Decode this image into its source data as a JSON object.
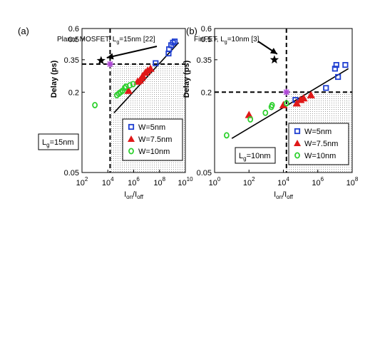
{
  "chart_data": [
    {
      "type": "scatter",
      "panel_label": "(a)",
      "xlabel": {
        "main": "I",
        "sub1": "on",
        "sep": "/I",
        "sub2": "off"
      },
      "ylabel": "Delay (ps)",
      "log_x": true,
      "log_y": true,
      "xlim": [
        100,
        10000000000
      ],
      "ylim": [
        0.05,
        0.6
      ],
      "x_ticks": [
        {
          "value": 100,
          "base": "10",
          "exp": "2"
        },
        {
          "value": 10000,
          "base": "10",
          "exp": "4"
        },
        {
          "value": 1000000,
          "base": "10",
          "exp": "6"
        },
        {
          "value": 100000000,
          "base": "10",
          "exp": "8"
        },
        {
          "value": 10000000000,
          "base": "10",
          "exp": "10"
        }
      ],
      "y_ticks": [
        {
          "value": 0.05,
          "label": "0.05"
        },
        {
          "value": 0.2,
          "label": "0.2"
        },
        {
          "value": 0.35,
          "label": "0.35"
        },
        {
          "value": 0.5,
          "label": "0.5"
        },
        {
          "value": 0.6,
          "label": "0.6"
        }
      ],
      "gate_box": {
        "prefix": "L",
        "sub": "g",
        "suffix": "=15nm"
      },
      "reference": {
        "prefix": "Planar MOSFET, L",
        "sub": "g",
        "suffix": "=15nm [22]",
        "x": 3000,
        "y": 0.345
      },
      "crossing_point": {
        "x": 15000,
        "y": 0.325
      },
      "dashed_x": 15000,
      "dashed_y": 0.325,
      "fit_line": {
        "x": [
          30000,
          3000000000
        ],
        "y": [
          0.14,
          0.47
        ]
      },
      "legend_position": "lower-right",
      "series": [
        {
          "name": "W=5nm",
          "marker": "square",
          "color": "#1f3fd1",
          "x": [
            50000000,
            500000000,
            550000000,
            800000000,
            1100000000,
            1500000000
          ],
          "y": [
            0.33,
            0.39,
            0.42,
            0.45,
            0.47,
            0.48
          ]
        },
        {
          "name": "W=7.5nm",
          "marker": "triangle",
          "color": "#e01818",
          "x": [
            400000,
            2000000,
            3000000,
            4000000,
            5000000,
            8000000,
            12000000,
            20000000
          ],
          "y": [
            0.205,
            0.24,
            0.245,
            0.255,
            0.265,
            0.28,
            0.29,
            0.3
          ]
        },
        {
          "name": "W=10nm",
          "marker": "circle",
          "color": "#2fd12f",
          "x": [
            1000,
            50000,
            70000,
            100000,
            140000,
            200000,
            250000,
            500000,
            900000
          ],
          "y": [
            0.16,
            0.19,
            0.195,
            0.2,
            0.205,
            0.215,
            0.22,
            0.225,
            0.23
          ]
        }
      ]
    },
    {
      "type": "scatter",
      "panel_label": "(b)",
      "xlabel": {
        "main": "I",
        "sub1": "on",
        "sep": "/I",
        "sub2": "off"
      },
      "ylabel": "Delay (ps)",
      "log_x": true,
      "log_y": true,
      "xlim": [
        1,
        100000000
      ],
      "ylim": [
        0.05,
        0.6
      ],
      "x_ticks": [
        {
          "value": 1,
          "base": "10",
          "exp": "0"
        },
        {
          "value": 100,
          "base": "10",
          "exp": "2"
        },
        {
          "value": 10000,
          "base": "10",
          "exp": "4"
        },
        {
          "value": 1000000,
          "base": "10",
          "exp": "6"
        },
        {
          "value": 100000000,
          "base": "10",
          "exp": "8"
        }
      ],
      "y_ticks": [
        {
          "value": 0.05,
          "label": "0.05"
        },
        {
          "value": 0.2,
          "label": "0.2"
        },
        {
          "value": 0.35,
          "label": "0.35"
        },
        {
          "value": 0.5,
          "label": "0.5"
        },
        {
          "value": 0.6,
          "label": "0.6"
        }
      ],
      "gate_box": {
        "prefix": "L",
        "sub": "g",
        "suffix": "=10nm"
      },
      "reference": {
        "prefix": "FinFET, L",
        "sub": "g",
        "suffix": "=10nm [3]",
        "x": 3000,
        "y": 0.35
      },
      "crossing_point": {
        "x": 15000,
        "y": 0.2
      },
      "dashed_x": 15000,
      "dashed_y": 0.2,
      "fit_line": {
        "x": [
          10,
          60000000
        ],
        "y": [
          0.09,
          0.3
        ]
      },
      "legend_position": "lower-right",
      "series": [
        {
          "name": "W=5nm",
          "marker": "square",
          "color": "#1f3fd1",
          "x": [
            50000,
            3000000,
            10000000,
            12000000,
            15000000,
            40000000
          ],
          "y": [
            0.175,
            0.215,
            0.3,
            0.32,
            0.26,
            0.32
          ]
        },
        {
          "name": "W=7.5nm",
          "marker": "triangle",
          "color": "#e01818",
          "x": [
            100,
            10000,
            60000,
            100000,
            150000,
            400000
          ],
          "y": [
            0.135,
            0.16,
            0.165,
            0.175,
            0.18,
            0.19
          ]
        },
        {
          "name": "W=10nm",
          "marker": "circle",
          "color": "#2fd12f",
          "x": [
            5,
            120,
            900,
            2000,
            2200,
            15000
          ],
          "y": [
            0.095,
            0.125,
            0.14,
            0.155,
            0.16,
            0.165
          ]
        }
      ]
    }
  ]
}
